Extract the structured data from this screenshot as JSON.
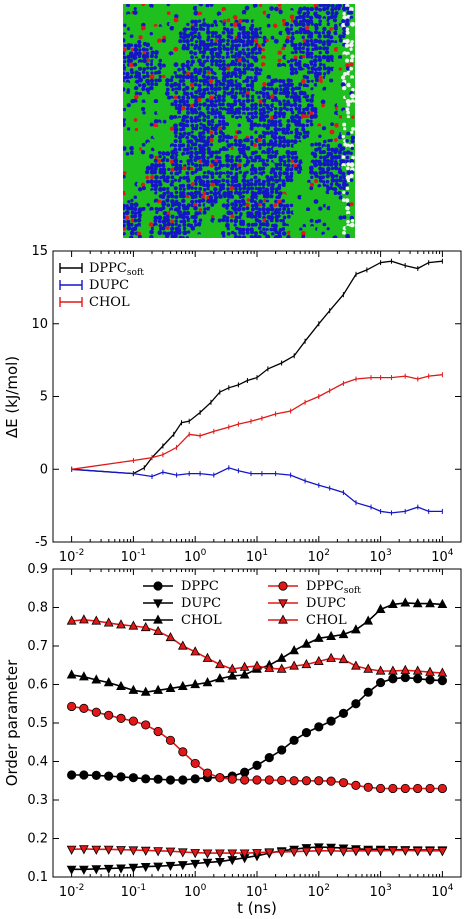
{
  "snapshot": {
    "colors": {
      "green": "#1fbf1f",
      "blue": "#1515c8",
      "red": "#e01818",
      "white": "#f2f2f2"
    }
  },
  "chart_data": [
    {
      "type": "line",
      "xscale": "log",
      "xlim": [
        0.005,
        20000
      ],
      "ylim": [
        -5,
        15
      ],
      "yticks": [
        -5,
        0,
        5,
        10,
        15
      ],
      "xticks": [
        0.01,
        0.1,
        1,
        10,
        100,
        1000,
        10000
      ],
      "xtick_labels": [
        {
          "base": "10",
          "exp": "-2"
        },
        {
          "base": "10",
          "exp": "-1"
        },
        {
          "base": "10",
          "exp": "0"
        },
        {
          "base": "10",
          "exp": "1"
        },
        {
          "base": "10",
          "exp": "2"
        },
        {
          "base": "10",
          "exp": "3"
        },
        {
          "base": "10",
          "exp": "4"
        }
      ],
      "ylabel": "ΔE (kJ/mol)",
      "xlabel": "",
      "legend_position": "top-left",
      "series": [
        {
          "name": "DPPC",
          "name_sub": "soft",
          "color": "#000000",
          "x": [
            0.01,
            0.1,
            0.15,
            0.2,
            0.3,
            0.45,
            0.6,
            0.8,
            1.2,
            1.8,
            2.5,
            3.5,
            5,
            7,
            10,
            15,
            25,
            40,
            60,
            100,
            150,
            250,
            400,
            600,
            1000,
            1500,
            2500,
            4000,
            6000,
            10000
          ],
          "y": [
            0,
            -0.3,
            0.1,
            0.8,
            1.6,
            2.4,
            3.2,
            3.3,
            3.9,
            4.6,
            5.3,
            5.6,
            5.8,
            6.1,
            6.3,
            6.9,
            7.3,
            7.8,
            8.8,
            10.0,
            10.9,
            12.0,
            13.4,
            13.7,
            14.2,
            14.3,
            14.0,
            13.8,
            14.2,
            14.3
          ]
        },
        {
          "name": "DUPC",
          "color": "#1515c8",
          "x": [
            0.01,
            0.1,
            0.2,
            0.3,
            0.5,
            0.8,
            1.2,
            2,
            3.5,
            5,
            8,
            12,
            20,
            35,
            60,
            100,
            150,
            250,
            400,
            700,
            1000,
            1500,
            2500,
            4000,
            6000,
            10000
          ],
          "y": [
            0,
            -0.3,
            -0.5,
            -0.2,
            -0.4,
            -0.3,
            -0.3,
            -0.4,
            0.1,
            -0.1,
            -0.3,
            -0.3,
            -0.3,
            -0.4,
            -0.8,
            -1.1,
            -1.3,
            -1.6,
            -2.3,
            -2.6,
            -2.9,
            -3.0,
            -2.9,
            -2.6,
            -2.9,
            -2.9
          ]
        },
        {
          "name": "CHOL",
          "color": "#e01818",
          "x": [
            0.01,
            0.1,
            0.2,
            0.3,
            0.5,
            0.8,
            1.2,
            2,
            3.5,
            5,
            8,
            12,
            20,
            35,
            60,
            100,
            150,
            250,
            400,
            700,
            1000,
            1500,
            2500,
            4000,
            6000,
            10000
          ],
          "y": [
            0,
            0.6,
            0.8,
            1.0,
            1.5,
            2.4,
            2.3,
            2.6,
            2.9,
            3.1,
            3.3,
            3.5,
            3.8,
            4.0,
            4.6,
            5.0,
            5.4,
            5.9,
            6.2,
            6.3,
            6.3,
            6.3,
            6.4,
            6.2,
            6.4,
            6.5
          ]
        }
      ]
    },
    {
      "type": "line",
      "xscale": "log",
      "xlim": [
        0.005,
        20000
      ],
      "ylim": [
        0.1,
        0.9
      ],
      "yticks": [
        0.1,
        0.2,
        0.3,
        0.4,
        0.5,
        0.6,
        0.7,
        0.8,
        0.9
      ],
      "ytick_labels": [
        "0.1",
        "0.2",
        "0.3",
        "0.4",
        "0.5",
        "0.6",
        "0.7",
        "0.8",
        "0.9"
      ],
      "xticks": [
        0.01,
        0.1,
        1,
        10,
        100,
        1000,
        10000
      ],
      "xtick_labels": [
        {
          "base": "10",
          "exp": "-2"
        },
        {
          "base": "10",
          "exp": "-1"
        },
        {
          "base": "10",
          "exp": "0"
        },
        {
          "base": "10",
          "exp": "1"
        },
        {
          "base": "10",
          "exp": "2"
        },
        {
          "base": "10",
          "exp": "3"
        },
        {
          "base": "10",
          "exp": "4"
        }
      ],
      "xlabel": "t (ns)",
      "ylabel": "Order parameter",
      "legend_position": "top-center",
      "x": [
        0.01,
        0.0158,
        0.0251,
        0.0398,
        0.0631,
        0.1,
        0.158,
        0.251,
        0.398,
        0.631,
        1,
        1.58,
        2.51,
        3.98,
        6.31,
        10,
        15.8,
        25.1,
        39.8,
        63.1,
        100,
        158,
        251,
        398,
        631,
        1000,
        1580,
        2510,
        3980,
        6310,
        10000
      ],
      "series": [
        {
          "name": "DPPC",
          "color": "#000000",
          "marker": "circle",
          "y": [
            0.365,
            0.365,
            0.364,
            0.362,
            0.36,
            0.358,
            0.355,
            0.354,
            0.352,
            0.352,
            0.355,
            0.358,
            0.358,
            0.362,
            0.372,
            0.39,
            0.41,
            0.43,
            0.455,
            0.475,
            0.49,
            0.505,
            0.525,
            0.55,
            0.58,
            0.605,
            0.615,
            0.618,
            0.615,
            0.612,
            0.61
          ]
        },
        {
          "name": "DUPC",
          "color": "#000000",
          "marker": "triangle-down",
          "y": [
            0.12,
            0.12,
            0.121,
            0.122,
            0.123,
            0.125,
            0.127,
            0.128,
            0.13,
            0.132,
            0.135,
            0.138,
            0.14,
            0.145,
            0.15,
            0.155,
            0.162,
            0.168,
            0.172,
            0.176,
            0.178,
            0.177,
            0.175,
            0.173,
            0.172,
            0.172,
            0.171,
            0.171,
            0.17,
            0.17,
            0.17
          ]
        },
        {
          "name": "CHOL",
          "color": "#000000",
          "marker": "triangle-up",
          "y": [
            0.625,
            0.62,
            0.612,
            0.605,
            0.595,
            0.585,
            0.58,
            0.585,
            0.59,
            0.595,
            0.6,
            0.605,
            0.615,
            0.622,
            0.625,
            0.64,
            0.65,
            0.668,
            0.688,
            0.705,
            0.72,
            0.725,
            0.73,
            0.742,
            0.765,
            0.795,
            0.808,
            0.812,
            0.81,
            0.81,
            0.808
          ]
        },
        {
          "name": "DPPC",
          "name_sub": "soft",
          "color": "#e01818",
          "marker": "circle",
          "y": [
            0.543,
            0.538,
            0.528,
            0.52,
            0.512,
            0.505,
            0.495,
            0.478,
            0.455,
            0.425,
            0.395,
            0.37,
            0.358,
            0.354,
            0.352,
            0.352,
            0.352,
            0.351,
            0.35,
            0.35,
            0.35,
            0.349,
            0.345,
            0.338,
            0.333,
            0.33,
            0.33,
            0.33,
            0.33,
            0.33,
            0.33
          ]
        },
        {
          "name": "DUPC",
          "color": "#e01818",
          "marker": "triangle-down",
          "y": [
            0.172,
            0.173,
            0.172,
            0.172,
            0.171,
            0.17,
            0.169,
            0.168,
            0.167,
            0.165,
            0.163,
            0.162,
            0.162,
            0.162,
            0.162,
            0.163,
            0.165,
            0.165,
            0.166,
            0.167,
            0.168,
            0.168,
            0.167,
            0.168,
            0.168,
            0.168,
            0.169,
            0.169,
            0.168,
            0.168,
            0.168
          ]
        },
        {
          "name": "CHOL",
          "color": "#e01818",
          "marker": "triangle-up",
          "y": [
            0.765,
            0.768,
            0.765,
            0.76,
            0.755,
            0.752,
            0.748,
            0.738,
            0.722,
            0.7,
            0.685,
            0.668,
            0.652,
            0.64,
            0.645,
            0.648,
            0.642,
            0.64,
            0.648,
            0.652,
            0.66,
            0.668,
            0.665,
            0.648,
            0.64,
            0.635,
            0.635,
            0.637,
            0.635,
            0.632,
            0.63
          ]
        }
      ]
    }
  ]
}
